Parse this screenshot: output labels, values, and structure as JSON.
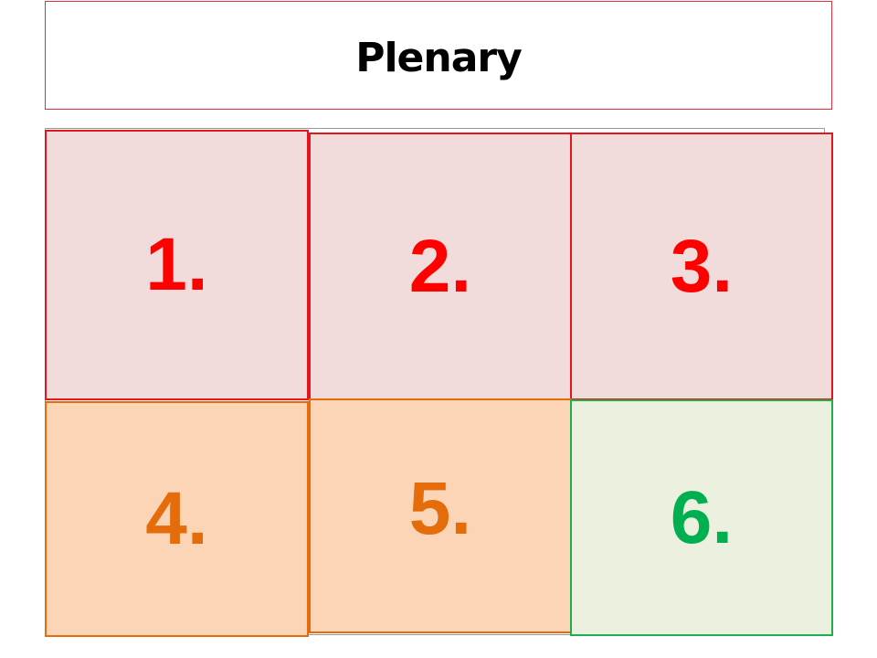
{
  "header": {
    "title": "Plenary"
  },
  "boxes": [
    {
      "label": "1."
    },
    {
      "label": "2."
    },
    {
      "label": "3."
    },
    {
      "label": "4."
    },
    {
      "label": "5."
    },
    {
      "label": "6."
    }
  ]
}
